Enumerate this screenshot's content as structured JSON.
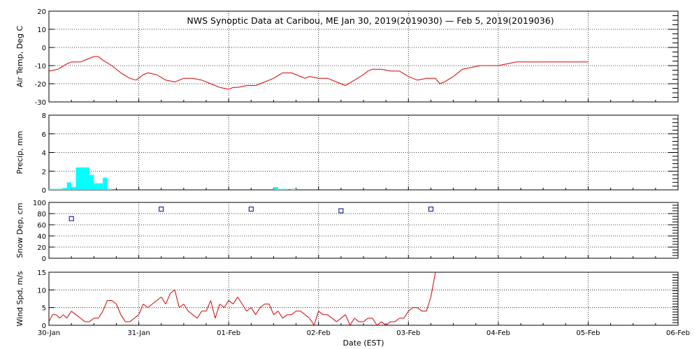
{
  "title": "NWS Synoptic Data at Caribou, ME   Jan 30, 2019(2019030) — Feb  5, 2019(2019036)",
  "xlabel": "Date (EST)",
  "x_tick_labels": [
    "30-Jan",
    "31-Jan",
    "01-Feb",
    "02-Feb",
    "03-Feb",
    "04-Feb",
    "05-Feb",
    "06-Feb"
  ],
  "colors": {
    "line": "#d40000",
    "bar": "#00ffff",
    "marker": "#00008b",
    "grid": "#000000"
  },
  "chart_data": [
    {
      "type": "line",
      "ylabel": "Air Temp, Deg C",
      "ylim": [
        -30,
        20
      ],
      "yticks": [
        20,
        10,
        0,
        -10,
        -20,
        -30
      ],
      "x_unit": "days since 30-Jan 00:00",
      "x": [
        0.0,
        0.1,
        0.2,
        0.25,
        0.35,
        0.45,
        0.5,
        0.55,
        0.6,
        0.7,
        0.8,
        0.9,
        0.97,
        1.05,
        1.1,
        1.2,
        1.3,
        1.4,
        1.5,
        1.6,
        1.7,
        1.8,
        1.9,
        2.0,
        2.05,
        2.1,
        2.2,
        2.3,
        2.4,
        2.5,
        2.6,
        2.7,
        2.75,
        2.8,
        2.85,
        2.9,
        3.0,
        3.1,
        3.2,
        3.3,
        3.4,
        3.5,
        3.55,
        3.6,
        3.7,
        3.8,
        3.9,
        4.0,
        4.05,
        4.1,
        4.2,
        4.3,
        4.35,
        4.4,
        4.5,
        4.6,
        4.7,
        4.8,
        4.9,
        5.0,
        5.1,
        5.2,
        5.5,
        6.0
      ],
      "values": [
        -13,
        -12,
        -9,
        -8,
        -8,
        -6,
        -5,
        -5,
        -7,
        -10,
        -14,
        -17,
        -18,
        -15,
        -14,
        -15,
        -18,
        -19,
        -17,
        -17,
        -18,
        -20,
        -22,
        -23,
        -22,
        -22,
        -21,
        -21,
        -19,
        -17,
        -14,
        -14,
        -15,
        -16,
        -17,
        -16,
        -17,
        -17,
        -19,
        -21,
        -18,
        -15,
        -13,
        -12,
        -12,
        -13,
        -13,
        -16,
        -17,
        -18,
        -17,
        -17,
        -20,
        -19,
        -16,
        -12,
        -11,
        -10,
        -10,
        -10,
        -9,
        -8,
        -8,
        -8
      ],
      "grid": true
    },
    {
      "type": "bar",
      "ylabel": "Precip, mm",
      "ylim": [
        0,
        8
      ],
      "yticks": [
        8,
        6,
        4,
        2,
        0
      ],
      "x_unit": "days since 30-Jan 00:00",
      "bar_width_days": 0.05,
      "x": [
        0.0,
        0.05,
        0.1,
        0.15,
        0.2,
        0.25,
        0.3,
        0.35,
        0.4,
        0.45,
        0.5,
        0.55,
        0.6,
        0.65,
        1.45,
        1.5,
        1.55,
        1.6,
        1.65,
        1.7,
        1.75,
        2.35,
        2.4,
        2.45,
        2.5,
        2.55,
        2.6,
        2.65,
        2.7
      ],
      "values": [
        0.1,
        0.1,
        0.1,
        0.2,
        0.8,
        0.3,
        2.4,
        2.4,
        2.4,
        1.6,
        0.7,
        0.7,
        1.3,
        0.1,
        0.0,
        0.0,
        0.0,
        0.0,
        0.0,
        0.0,
        0.0,
        0.0,
        0.0,
        0.0,
        0.3,
        0.1,
        0.1,
        0.0,
        0.1
      ],
      "grid": true
    },
    {
      "type": "scatter",
      "ylabel": "Snow Dep, cm",
      "ylim": [
        0,
        100
      ],
      "yticks": [
        100,
        80,
        60,
        40,
        20,
        0
      ],
      "x_unit": "days since 30-Jan 00:00",
      "x": [
        0.25,
        1.25,
        2.25,
        3.25,
        4.25
      ],
      "values": [
        71,
        88,
        88,
        85,
        88
      ],
      "grid": true
    },
    {
      "type": "line",
      "ylabel": "Wind Spd, m/s",
      "ylim": [
        0,
        15
      ],
      "yticks": [
        15,
        10,
        5,
        0
      ],
      "x_unit": "days since 30-Jan 00:00",
      "x": [
        0.0,
        0.04,
        0.08,
        0.12,
        0.16,
        0.2,
        0.25,
        0.3,
        0.35,
        0.4,
        0.45,
        0.5,
        0.55,
        0.6,
        0.65,
        0.7,
        0.75,
        0.8,
        0.85,
        0.9,
        0.95,
        1.0,
        1.05,
        1.1,
        1.15,
        1.2,
        1.25,
        1.3,
        1.35,
        1.4,
        1.45,
        1.5,
        1.55,
        1.6,
        1.65,
        1.7,
        1.75,
        1.8,
        1.85,
        1.9,
        1.95,
        2.0,
        2.05,
        2.1,
        2.15,
        2.2,
        2.25,
        2.3,
        2.35,
        2.4,
        2.45,
        2.5,
        2.55,
        2.6,
        2.65,
        2.7,
        2.75,
        2.8,
        2.85,
        2.9,
        2.95,
        3.0,
        3.05,
        3.1,
        3.15,
        3.2,
        3.25,
        3.3,
        3.35,
        3.4,
        3.45,
        3.5,
        3.55,
        3.6,
        3.65,
        3.7,
        3.75,
        3.8,
        3.85,
        3.9,
        3.95,
        4.0,
        4.05,
        4.1,
        4.15,
        4.2,
        4.25,
        4.3
      ],
      "values": [
        1,
        3,
        3,
        2,
        3,
        2,
        4,
        3,
        2,
        1,
        1,
        2,
        2,
        4,
        7,
        7,
        6,
        3,
        1,
        1,
        2,
        3,
        6,
        5,
        6,
        7,
        8,
        6,
        9,
        10,
        5,
        6,
        4,
        3,
        2,
        4,
        4,
        7,
        2,
        6,
        5,
        7,
        6,
        8,
        6,
        4,
        5,
        3,
        5,
        6,
        6,
        3,
        4,
        2,
        3,
        3,
        4,
        4,
        3,
        2,
        0,
        4,
        3,
        3,
        2,
        1,
        2,
        3,
        0,
        2,
        1,
        1,
        2,
        2,
        0,
        1,
        0,
        1,
        1,
        2,
        2,
        4,
        5,
        5,
        4,
        4,
        8,
        15
      ],
      "grid": true
    }
  ]
}
